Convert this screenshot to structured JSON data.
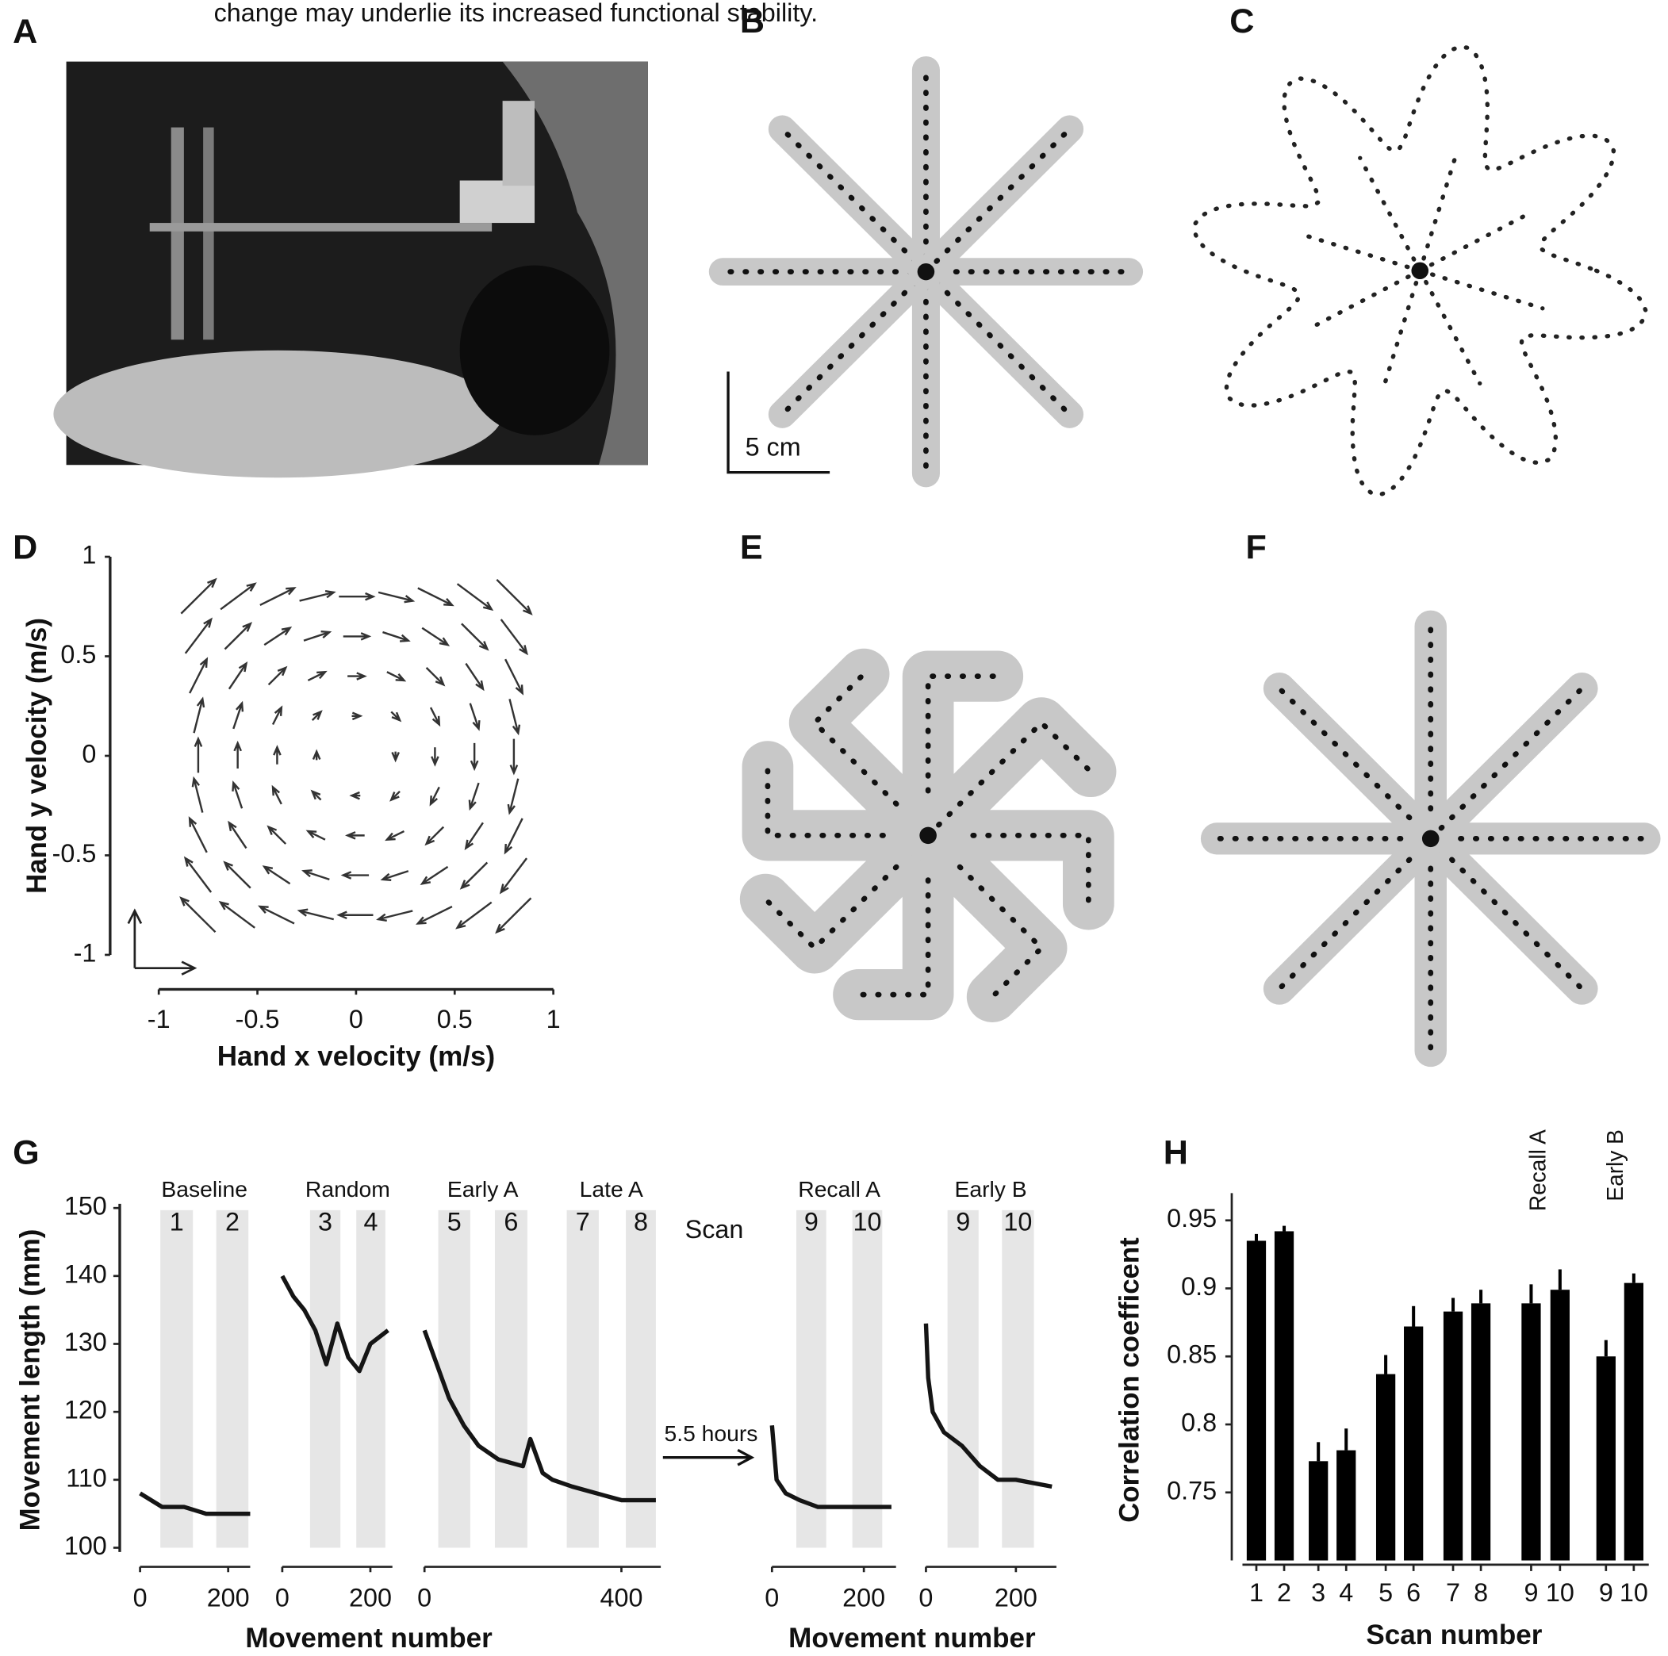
{
  "caption": "change may underlie its increased functional stability.",
  "panel_labels": [
    "A",
    "B",
    "C",
    "D",
    "E",
    "F",
    "G",
    "H"
  ],
  "scale_bar_label": "5 cm",
  "chart_data": [
    {
      "type": "quiver",
      "xlabel": "Hand x velocity (m/s)",
      "ylabel": "Hand y velocity (m/s)",
      "xlim": [
        -1,
        1
      ],
      "ylim": [
        -1,
        1
      ],
      "xticks": [
        -1,
        -0.5,
        0,
        0.5,
        1
      ],
      "yticks": [
        -1,
        -0.5,
        0,
        0.5,
        1
      ],
      "x": [
        -0.8,
        -0.6,
        -0.4,
        -0.2,
        0,
        0.2,
        0.4,
        0.6,
        0.8
      ],
      "y": [
        -0.8,
        -0.6,
        -0.4,
        -0.2,
        0,
        0.2,
        0.4,
        0.6,
        0.8
      ],
      "color": "#333333"
    },
    {
      "type": "line",
      "ylabel": "Movement length (mm)",
      "xlabel": "Movement number",
      "scan_label": "Scan",
      "gap_label": "5.5 hours",
      "ylim": [
        100,
        150
      ],
      "yticks": [
        100,
        110,
        120,
        130,
        140,
        150
      ],
      "color": "#151515",
      "band_color": "#e6e6e6",
      "panels": [
        {
          "xlim": [
            0,
            250
          ],
          "xticks": [
            0,
            200
          ],
          "blocks": [
            {
              "name": "Baseline",
              "scans": [
                "1",
                "2"
              ],
              "bands": [
                [
                  46,
                  120
                ],
                [
                  173,
                  246
                ]
              ]
            }
          ],
          "x": [
            0,
            50,
            100,
            150,
            200,
            250
          ],
          "values": [
            108,
            106,
            106,
            105,
            105,
            105
          ]
        },
        {
          "xlim": [
            0,
            250
          ],
          "xticks": [
            0,
            200
          ],
          "blocks": [
            {
              "name": "Random",
              "scans": [
                "3",
                "4"
              ],
              "bands": [
                [
                  63,
                  132
                ],
                [
                  168,
                  234
                ]
              ]
            }
          ],
          "x": [
            0,
            25,
            50,
            75,
            100,
            125,
            150,
            175,
            200,
            240
          ],
          "values": [
            140,
            137,
            135,
            132,
            127,
            133,
            128,
            126,
            130,
            132
          ]
        },
        {
          "xlim": [
            0,
            480
          ],
          "xticks": [
            0,
            400
          ],
          "blocks": [
            {
              "name": "Early A",
              "scans": [
                "5",
                "6"
              ],
              "bands": [
                [
                  28,
                  93
                ],
                [
                  143,
                  209
                ]
              ]
            },
            {
              "name": "Late A",
              "scans": [
                "7",
                "8"
              ],
              "bands": [
                [
                  289,
                  354
                ],
                [
                  409,
                  470
                ]
              ]
            }
          ],
          "x": [
            0,
            20,
            50,
            80,
            110,
            150,
            200,
            215,
            240,
            260,
            300,
            350,
            400,
            470
          ],
          "values": [
            132,
            128,
            122,
            118,
            115,
            113,
            112,
            116,
            111,
            110,
            109,
            108,
            107,
            107
          ]
        },
        {
          "xlim": [
            0,
            270
          ],
          "xticks": [
            0,
            200
          ],
          "blocks": [
            {
              "name": "Recall A",
              "scans": [
                "9",
                "10"
              ],
              "bands": [
                [
                  53,
                  118
                ],
                [
                  175,
                  240
                ]
              ]
            }
          ],
          "x": [
            0,
            10,
            30,
            60,
            100,
            150,
            200,
            260
          ],
          "values": [
            118,
            110,
            108,
            107,
            106,
            106,
            106,
            106
          ]
        },
        {
          "xlim": [
            0,
            290
          ],
          "xticks": [
            0,
            200
          ],
          "blocks": [
            {
              "name": "Early B",
              "scans": [
                "9",
                "10"
              ],
              "bands": [
                [
                  48,
                  117
                ],
                [
                  169,
                  240
                ]
              ]
            }
          ],
          "x": [
            0,
            5,
            15,
            40,
            80,
            120,
            160,
            200,
            280
          ],
          "values": [
            133,
            125,
            120,
            117,
            115,
            112,
            110,
            110,
            109
          ]
        }
      ]
    },
    {
      "type": "bar",
      "ylabel": "Correlation coefficent",
      "xlabel": "Scan number",
      "categories": [
        "1",
        "2",
        "3",
        "4",
        "5",
        "6",
        "7",
        "8",
        "9",
        "10",
        "9",
        "10"
      ],
      "values": [
        0.935,
        0.942,
        0.773,
        0.781,
        0.837,
        0.872,
        0.883,
        0.889,
        0.889,
        0.899,
        0.85,
        0.904
      ],
      "errors": [
        0.005,
        0.004,
        0.014,
        0.016,
        0.014,
        0.015,
        0.01,
        0.01,
        0.014,
        0.015,
        0.012,
        0.007
      ],
      "annotations": [
        "Recall A",
        "Early B"
      ],
      "ylim": [
        0.7,
        0.97
      ],
      "yticks": [
        0.75,
        0.8,
        0.85,
        0.9,
        0.95
      ],
      "color": "#000000"
    }
  ]
}
